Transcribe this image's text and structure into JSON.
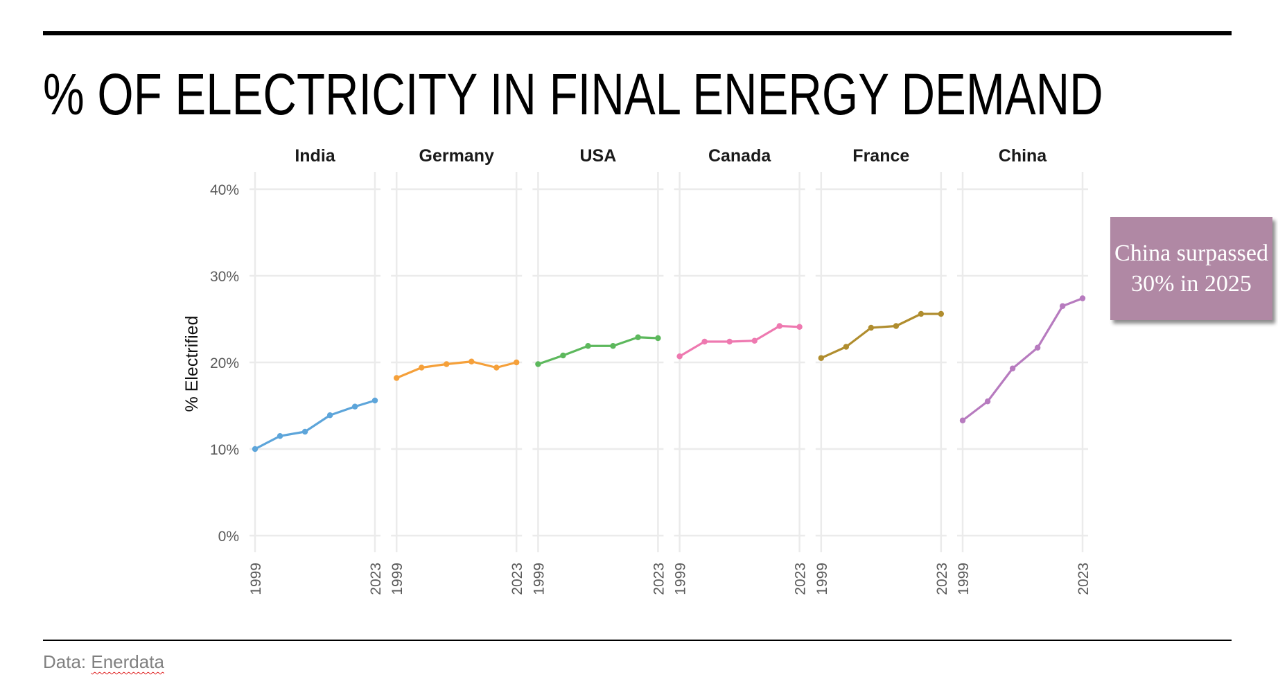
{
  "title": "% OF ELECTRICITY IN FINAL ENERGY DEMAND",
  "source": {
    "prefix": "Data: ",
    "name": "Enerdata"
  },
  "callout": {
    "text": "China surpassed 30% in 2025"
  },
  "chart_data": {
    "type": "line",
    "title": "% OF ELECTRICITY IN FINAL ENERGY DEMAND",
    "xlabel": "",
    "ylabel": "% Electrified",
    "x": [
      1999,
      2004,
      2009,
      2014,
      2019,
      2023
    ],
    "x_tick_labels": [
      "1999",
      "2023"
    ],
    "xlim": [
      1999,
      2023
    ],
    "ylim": [
      0,
      40
    ],
    "y_ticks": [
      0,
      10,
      20,
      30,
      40
    ],
    "y_tick_labels": [
      "0%",
      "10%",
      "20%",
      "30%",
      "40%"
    ],
    "grid": true,
    "facets": [
      "India",
      "Germany",
      "USA",
      "Canada",
      "France",
      "China"
    ],
    "series": [
      {
        "name": "India",
        "color": "#5DA5DA",
        "values": [
          10.0,
          11.5,
          12.0,
          13.9,
          14.9,
          15.6
        ]
      },
      {
        "name": "Germany",
        "color": "#F5A03A",
        "values": [
          18.2,
          19.4,
          19.8,
          20.1,
          19.4,
          20.0
        ]
      },
      {
        "name": "USA",
        "color": "#5CB85C",
        "values": [
          19.8,
          20.8,
          21.9,
          21.9,
          22.9,
          22.8
        ]
      },
      {
        "name": "Canada",
        "color": "#EE79B0",
        "values": [
          20.7,
          22.4,
          22.4,
          22.5,
          24.2,
          24.1
        ]
      },
      {
        "name": "France",
        "color": "#B08D2E",
        "values": [
          20.5,
          21.8,
          24.0,
          24.2,
          25.6,
          25.6
        ]
      },
      {
        "name": "China",
        "color": "#B77BBF",
        "values": [
          13.3,
          15.5,
          19.3,
          21.7,
          26.5,
          27.4
        ]
      }
    ]
  }
}
